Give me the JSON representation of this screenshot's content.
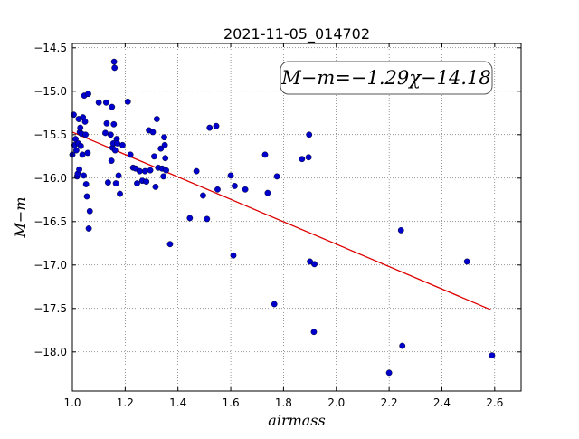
{
  "chart_data": {
    "type": "scatter",
    "title": "2021-11-05_014702",
    "xlabel": "airmass",
    "ylabel": "M−m",
    "xlim": [
      1.0,
      2.7
    ],
    "ylim": [
      -18.45,
      -14.45
    ],
    "y_inverted": true,
    "grid": true,
    "xticks": [
      "1.0",
      "1.2",
      "1.4",
      "1.6",
      "1.8",
      "2.0",
      "2.2",
      "2.4",
      "2.6"
    ],
    "yticks": [
      "−14.5",
      "−15.0",
      "−15.5",
      "−16.0",
      "−16.5",
      "−17.0",
      "−17.5",
      "−18.0"
    ],
    "annotation": "M−m=−1.29χ−14.18",
    "marker_color": "#0000cc",
    "fit_color": "#dd0000",
    "fit": {
      "slope": -1.29,
      "intercept": -14.18,
      "x_range": [
        1.0,
        2.585
      ]
    },
    "points": [
      [
        1.0,
        -15.73
      ],
      [
        1.005,
        -15.27
      ],
      [
        1.008,
        -15.62
      ],
      [
        1.012,
        -15.55
      ],
      [
        1.015,
        -15.68
      ],
      [
        1.018,
        -15.98
      ],
      [
        1.02,
        -15.95
      ],
      [
        1.022,
        -15.6
      ],
      [
        1.024,
        -15.32
      ],
      [
        1.026,
        -15.9
      ],
      [
        1.028,
        -15.47
      ],
      [
        1.03,
        -15.42
      ],
      [
        1.032,
        -15.63
      ],
      [
        1.035,
        -15.49
      ],
      [
        1.038,
        -15.73
      ],
      [
        1.04,
        -15.3
      ],
      [
        1.043,
        -15.97
      ],
      [
        1.045,
        -15.05
      ],
      [
        1.048,
        -15.35
      ],
      [
        1.05,
        -15.5
      ],
      [
        1.052,
        -16.07
      ],
      [
        1.055,
        -16.21
      ],
      [
        1.058,
        -15.71
      ],
      [
        1.06,
        -15.03
      ],
      [
        1.062,
        -16.58
      ],
      [
        1.066,
        -16.38
      ],
      [
        1.1,
        -15.13
      ],
      [
        1.125,
        -15.48
      ],
      [
        1.128,
        -15.13
      ],
      [
        1.13,
        -15.37
      ],
      [
        1.135,
        -16.05
      ],
      [
        1.145,
        -15.5
      ],
      [
        1.148,
        -15.8
      ],
      [
        1.15,
        -15.18
      ],
      [
        1.152,
        -15.65
      ],
      [
        1.155,
        -15.6
      ],
      [
        1.157,
        -15.38
      ],
      [
        1.158,
        -14.66
      ],
      [
        1.16,
        -14.73
      ],
      [
        1.162,
        -15.68
      ],
      [
        1.165,
        -16.06
      ],
      [
        1.168,
        -15.55
      ],
      [
        1.17,
        -15.6
      ],
      [
        1.175,
        -15.97
      ],
      [
        1.18,
        -16.18
      ],
      [
        1.19,
        -15.62
      ],
      [
        1.21,
        -15.12
      ],
      [
        1.22,
        -15.73
      ],
      [
        1.23,
        -15.88
      ],
      [
        1.24,
        -15.89
      ],
      [
        1.245,
        -16.06
      ],
      [
        1.255,
        -15.92
      ],
      [
        1.265,
        -16.03
      ],
      [
        1.275,
        -15.92
      ],
      [
        1.28,
        -16.04
      ],
      [
        1.29,
        -15.45
      ],
      [
        1.295,
        -15.91
      ],
      [
        1.305,
        -15.47
      ],
      [
        1.31,
        -15.75
      ],
      [
        1.315,
        -16.1
      ],
      [
        1.32,
        -15.32
      ],
      [
        1.325,
        -15.88
      ],
      [
        1.335,
        -15.66
      ],
      [
        1.34,
        -15.89
      ],
      [
        1.345,
        -15.98
      ],
      [
        1.348,
        -15.53
      ],
      [
        1.35,
        -15.62
      ],
      [
        1.352,
        -15.77
      ],
      [
        1.355,
        -15.91
      ],
      [
        1.37,
        -16.76
      ],
      [
        1.445,
        -16.46
      ],
      [
        1.47,
        -15.92
      ],
      [
        1.495,
        -16.2
      ],
      [
        1.51,
        -16.47
      ],
      [
        1.52,
        -15.42
      ],
      [
        1.545,
        -15.4
      ],
      [
        1.55,
        -16.13
      ],
      [
        1.6,
        -15.97
      ],
      [
        1.61,
        -16.89
      ],
      [
        1.615,
        -16.09
      ],
      [
        1.655,
        -16.13
      ],
      [
        1.73,
        -15.73
      ],
      [
        1.74,
        -16.17
      ],
      [
        1.765,
        -17.45
      ],
      [
        1.775,
        -15.98
      ],
      [
        1.87,
        -15.78
      ],
      [
        1.895,
        -15.76
      ],
      [
        1.897,
        -15.5
      ],
      [
        1.9,
        -16.96
      ],
      [
        1.915,
        -17.77
      ],
      [
        1.917,
        -16.99
      ],
      [
        2.2,
        -18.24
      ],
      [
        2.245,
        -16.6
      ],
      [
        2.25,
        -17.93
      ],
      [
        2.495,
        -16.96
      ],
      [
        2.59,
        -18.04
      ]
    ]
  }
}
